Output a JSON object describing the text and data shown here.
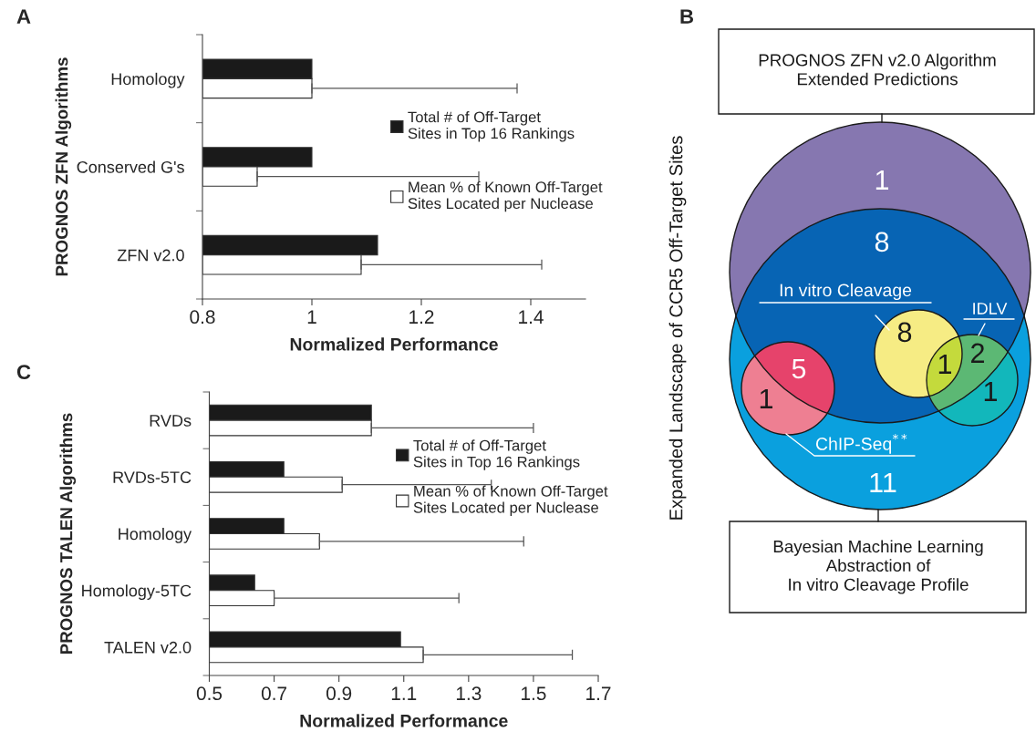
{
  "chart_data": [
    {
      "type": "bar",
      "title": "A",
      "orientation": "horizontal",
      "ylabel": "PROGNOS ZFN Algorithms",
      "xlabel": "Normalized Performance",
      "categories": [
        "Homology",
        "Conserved G's",
        "ZFN v2.0"
      ],
      "series": [
        {
          "name": "Total # of Off-Target\nSites in Top 16 Rankings",
          "color": "#1a1a1a",
          "values": [
            1.0,
            1.0,
            1.12
          ]
        },
        {
          "name": "Mean % of Known Off-Target\nSites Located per Nuclease",
          "color": "#ffffff",
          "values": [
            1.0,
            0.9,
            1.09
          ],
          "errors": [
            [
              1.0,
              1.375
            ],
            [
              0.9,
              1.305
            ],
            [
              1.09,
              1.42
            ]
          ]
        }
      ],
      "xlim": [
        0.8,
        1.5
      ],
      "xticks": [
        0.8,
        1,
        1.2,
        1.4
      ],
      "legend": "right",
      "grid": false
    },
    {
      "type": "other",
      "title": "B",
      "ylabel": "Expanded Landscape of CCR5 Off-Target Sites",
      "categories": [
        null,
        null,
        null,
        null,
        null,
        null,
        null,
        null,
        null
      ],
      "values": [
        1,
        8,
        8,
        1,
        2,
        1,
        5,
        1,
        11
      ],
      "data_labels": true,
      "annotations": [
        "PROGNOS ZFN v2.0 Algorithm\nExtended Predictions",
        "In vitro Cleavage",
        "IDLV",
        "ChIP-Seq$^{**}$",
        "Bayesian Machine Learning\nAbstraction of\nIn vitro Cleavage Profile"
      ]
    },
    {
      "type": "bar",
      "title": "C",
      "orientation": "horizontal",
      "ylabel": "PROGNOS TALEN Algorithms",
      "xlabel": "Normalized Performance",
      "categories": [
        "RVDs",
        "RVDs-5TC",
        "Homology",
        "Homology-5TC",
        "TALEN v2.0"
      ],
      "series": [
        {
          "name": "Total # of Off-Target\nSites in Top 16 Rankings",
          "color": "#1a1a1a",
          "values": [
            1.0,
            0.73,
            0.73,
            0.64,
            1.09
          ]
        },
        {
          "name": "Mean % of Known Off-Target\nSites Located per Nuclease",
          "color": "#ffffff",
          "values": [
            1.0,
            0.91,
            0.84,
            0.7,
            1.16
          ],
          "errors": [
            [
              1.0,
              1.5
            ],
            [
              0.91,
              1.37
            ],
            [
              0.84,
              1.47
            ],
            [
              0.7,
              1.27
            ],
            [
              1.16,
              1.62
            ]
          ]
        }
      ],
      "xlim": [
        0.5,
        1.7
      ],
      "xticks": [
        0.5,
        0.7,
        0.9,
        1.1,
        1.3,
        1.5,
        1.7
      ],
      "legend": "upper right",
      "grid": false
    }
  ]
}
